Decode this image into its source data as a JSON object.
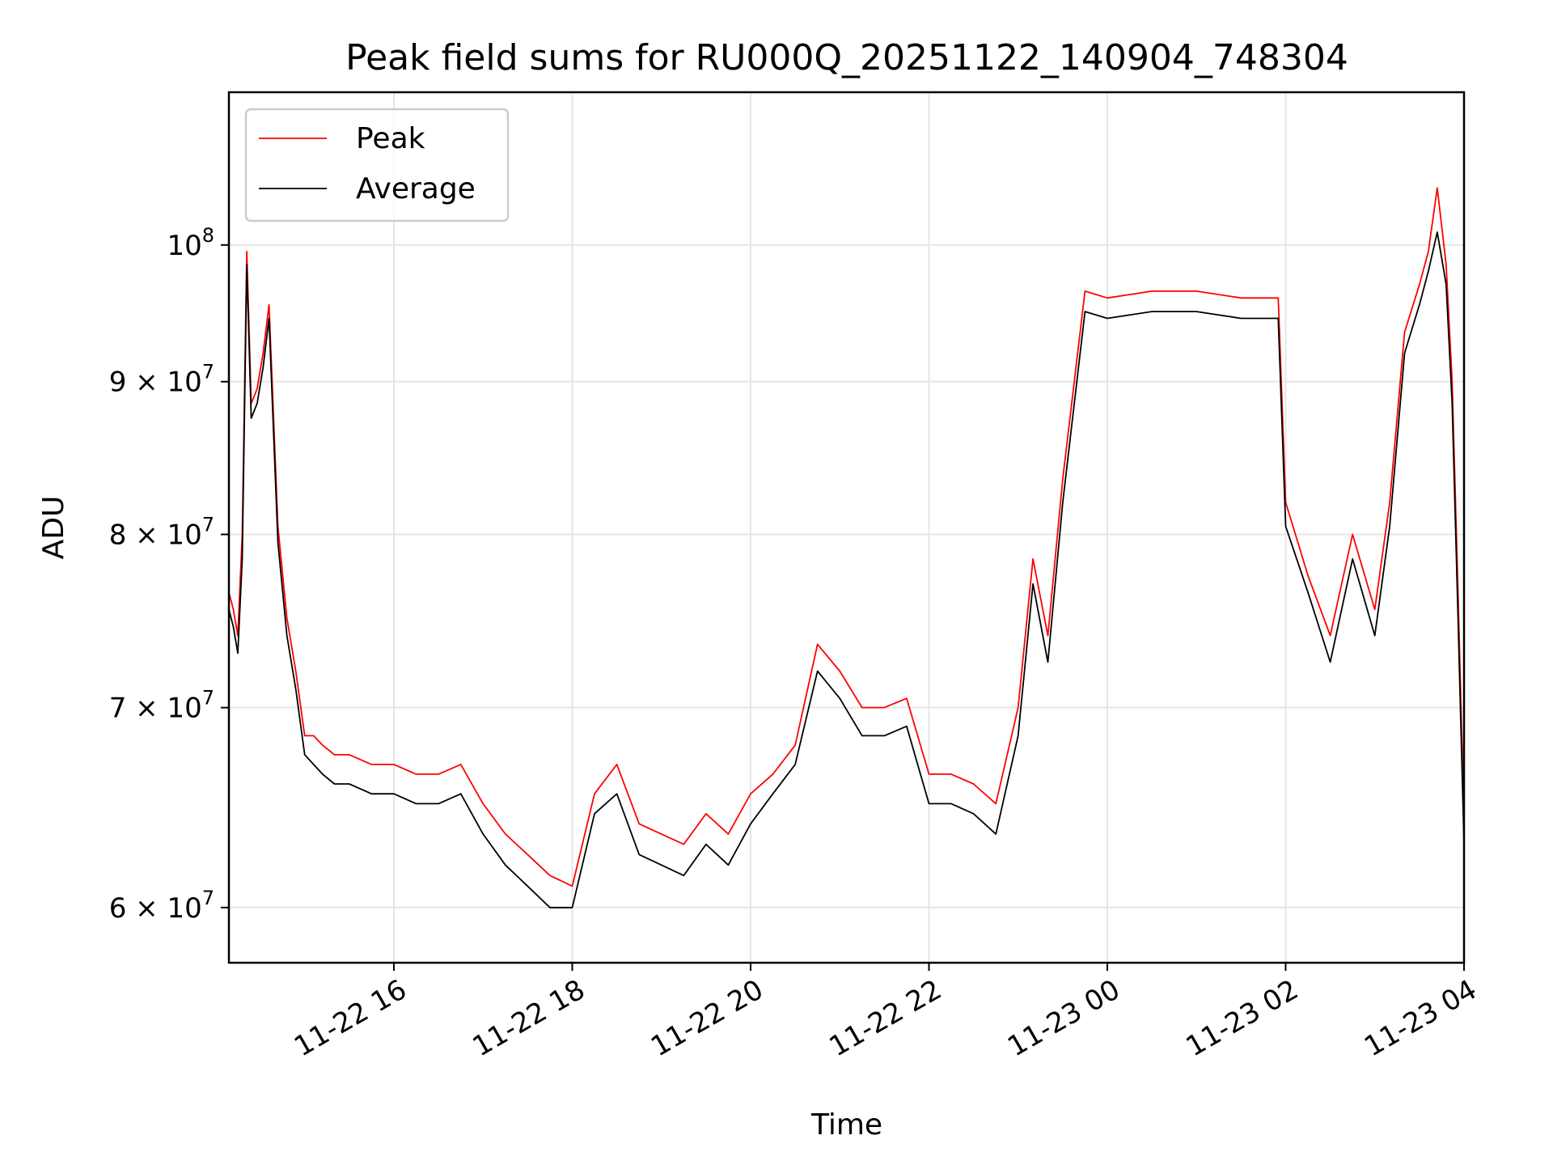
{
  "chart_data": {
    "type": "line",
    "title": "Peak field sums for RU000Q_20251122_140904_748304",
    "xlabel": "Time",
    "ylabel": "ADU",
    "y_scale": "log",
    "xlim": [
      "2025-11-22 14:09",
      "2025-11-23 04:00"
    ],
    "ylim": [
      57500000,
      112500000
    ],
    "x_ticks": [
      {
        "value": "2025-11-22 16:00",
        "label": "11-22 16"
      },
      {
        "value": "2025-11-22 18:00",
        "label": "11-22 18"
      },
      {
        "value": "2025-11-22 20:00",
        "label": "11-22 20"
      },
      {
        "value": "2025-11-22 22:00",
        "label": "11-22 22"
      },
      {
        "value": "2025-11-23 00:00",
        "label": "11-23 00"
      },
      {
        "value": "2025-11-23 02:00",
        "label": "11-23 02"
      },
      {
        "value": "2025-11-23 04:00",
        "label": "11-23 04"
      }
    ],
    "y_ticks": [
      {
        "value": 60000000,
        "mant": "6",
        "exp": "7"
      },
      {
        "value": 70000000,
        "mant": "7",
        "exp": "7"
      },
      {
        "value": 80000000,
        "mant": "8",
        "exp": "7"
      },
      {
        "value": 90000000,
        "mant": "9",
        "exp": "7"
      },
      {
        "value": 100000000,
        "mant": "",
        "exp": "8"
      }
    ],
    "grid": true,
    "legend_position": "top-left",
    "series": [
      {
        "name": "Peak",
        "color": "#ff0000",
        "x": [
          "2025-11-22 14:09",
          "2025-11-22 14:12",
          "2025-11-22 14:15",
          "2025-11-22 14:18",
          "2025-11-22 14:21",
          "2025-11-22 14:24",
          "2025-11-22 14:28",
          "2025-11-22 14:32",
          "2025-11-22 14:36",
          "2025-11-22 14:42",
          "2025-11-22 14:48",
          "2025-11-22 14:54",
          "2025-11-22 15:00",
          "2025-11-22 15:06",
          "2025-11-22 15:12",
          "2025-11-22 15:20",
          "2025-11-22 15:30",
          "2025-11-22 15:45",
          "2025-11-22 16:00",
          "2025-11-22 16:15",
          "2025-11-22 16:30",
          "2025-11-22 16:45",
          "2025-11-22 17:00",
          "2025-11-22 17:15",
          "2025-11-22 17:30",
          "2025-11-22 17:45",
          "2025-11-22 18:00",
          "2025-11-22 18:15",
          "2025-11-22 18:30",
          "2025-11-22 18:45",
          "2025-11-22 19:00",
          "2025-11-22 19:15",
          "2025-11-22 19:30",
          "2025-11-22 19:45",
          "2025-11-22 20:00",
          "2025-11-22 20:15",
          "2025-11-22 20:30",
          "2025-11-22 20:45",
          "2025-11-22 21:00",
          "2025-11-22 21:15",
          "2025-11-22 21:30",
          "2025-11-22 21:45",
          "2025-11-22 22:00",
          "2025-11-22 22:15",
          "2025-11-22 22:30",
          "2025-11-22 22:45",
          "2025-11-22 23:00",
          "2025-11-22 23:10",
          "2025-11-22 23:20",
          "2025-11-22 23:30",
          "2025-11-22 23:45",
          "2025-11-23 00:00",
          "2025-11-23 00:30",
          "2025-11-23 01:00",
          "2025-11-23 01:30",
          "2025-11-23 01:55",
          "2025-11-23 02:00",
          "2025-11-23 02:15",
          "2025-11-23 02:30",
          "2025-11-23 02:45",
          "2025-11-23 03:00",
          "2025-11-23 03:10",
          "2025-11-23 03:20",
          "2025-11-23 03:30",
          "2025-11-23 03:36",
          "2025-11-23 03:42",
          "2025-11-23 03:48",
          "2025-11-23 03:52",
          "2025-11-23 03:56",
          "2025-11-23 04:00"
        ],
        "y": [
          76500000,
          75500000,
          74000000,
          80000000,
          99500000,
          88500000,
          89500000,
          92000000,
          95500000,
          80500000,
          75000000,
          72000000,
          68500000,
          68500000,
          68000000,
          67500000,
          67500000,
          67000000,
          67000000,
          66500000,
          66500000,
          67000000,
          65000000,
          63500000,
          62500000,
          61500000,
          61000000,
          65500000,
          67000000,
          64000000,
          63500000,
          63000000,
          64500000,
          63500000,
          65500000,
          66500000,
          68000000,
          73500000,
          72000000,
          70000000,
          70000000,
          70500000,
          66500000,
          66500000,
          66000000,
          65000000,
          70000000,
          78500000,
          74000000,
          83500000,
          96500000,
          96000000,
          96500000,
          96500000,
          96000000,
          96000000,
          82000000,
          77500000,
          74000000,
          80000000,
          75500000,
          82000000,
          93500000,
          97000000,
          99500000,
          104500000,
          98500000,
          90000000,
          76500000,
          64000000
        ]
      },
      {
        "name": "Average",
        "color": "#000000",
        "x": [
          "2025-11-22 14:09",
          "2025-11-22 14:12",
          "2025-11-22 14:15",
          "2025-11-22 14:18",
          "2025-11-22 14:21",
          "2025-11-22 14:24",
          "2025-11-22 14:28",
          "2025-11-22 14:32",
          "2025-11-22 14:36",
          "2025-11-22 14:42",
          "2025-11-22 14:48",
          "2025-11-22 14:54",
          "2025-11-22 15:00",
          "2025-11-22 15:06",
          "2025-11-22 15:12",
          "2025-11-22 15:20",
          "2025-11-22 15:30",
          "2025-11-22 15:45",
          "2025-11-22 16:00",
          "2025-11-22 16:15",
          "2025-11-22 16:30",
          "2025-11-22 16:45",
          "2025-11-22 17:00",
          "2025-11-22 17:15",
          "2025-11-22 17:30",
          "2025-11-22 17:45",
          "2025-11-22 18:00",
          "2025-11-22 18:15",
          "2025-11-22 18:30",
          "2025-11-22 18:45",
          "2025-11-22 19:00",
          "2025-11-22 19:15",
          "2025-11-22 19:30",
          "2025-11-22 19:45",
          "2025-11-22 20:00",
          "2025-11-22 20:15",
          "2025-11-22 20:30",
          "2025-11-22 20:45",
          "2025-11-22 21:00",
          "2025-11-22 21:15",
          "2025-11-22 21:30",
          "2025-11-22 21:45",
          "2025-11-22 22:00",
          "2025-11-22 22:15",
          "2025-11-22 22:30",
          "2025-11-22 22:45",
          "2025-11-22 23:00",
          "2025-11-22 23:10",
          "2025-11-22 23:20",
          "2025-11-22 23:30",
          "2025-11-22 23:45",
          "2025-11-23 00:00",
          "2025-11-23 00:30",
          "2025-11-23 01:00",
          "2025-11-23 01:30",
          "2025-11-23 01:55",
          "2025-11-23 02:00",
          "2025-11-23 02:15",
          "2025-11-23 02:30",
          "2025-11-23 02:45",
          "2025-11-23 03:00",
          "2025-11-23 03:10",
          "2025-11-23 03:20",
          "2025-11-23 03:30",
          "2025-11-23 03:36",
          "2025-11-23 03:42",
          "2025-11-23 03:48",
          "2025-11-23 03:52",
          "2025-11-23 03:56",
          "2025-11-23 04:00"
        ],
        "y": [
          75500000,
          74500000,
          73000000,
          78500000,
          98500000,
          87500000,
          88500000,
          91000000,
          94500000,
          79500000,
          74000000,
          71000000,
          67500000,
          67000000,
          66500000,
          66000000,
          66000000,
          65500000,
          65500000,
          65000000,
          65000000,
          65500000,
          63500000,
          62000000,
          61000000,
          60000000,
          60000000,
          64500000,
          65500000,
          62500000,
          62000000,
          61500000,
          63000000,
          62000000,
          64000000,
          65500000,
          67000000,
          72000000,
          70500000,
          68500000,
          68500000,
          69000000,
          65000000,
          65000000,
          64500000,
          63500000,
          68500000,
          77000000,
          72500000,
          82000000,
          95000000,
          94500000,
          95000000,
          95000000,
          94500000,
          94500000,
          80500000,
          76500000,
          72500000,
          78500000,
          74000000,
          80500000,
          92000000,
          95500000,
          98000000,
          101000000,
          97000000,
          88500000,
          75000000,
          63000000
        ]
      }
    ]
  }
}
